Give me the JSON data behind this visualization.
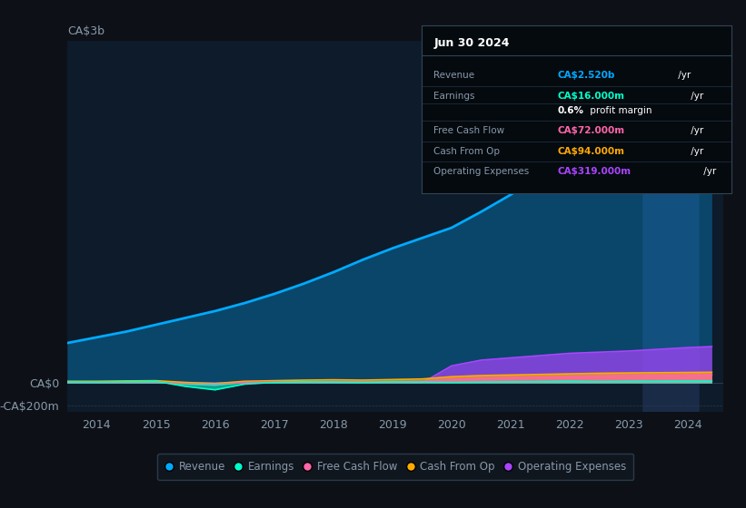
{
  "bg_color": "#0d1117",
  "plot_bg_color": "#0d1b2a",
  "text_color": "#8899aa",
  "years": [
    2013.5,
    2014,
    2014.5,
    2015,
    2015.5,
    2016,
    2016.5,
    2017,
    2017.5,
    2018,
    2018.5,
    2019,
    2019.5,
    2020,
    2020.5,
    2021,
    2021.5,
    2022,
    2022.5,
    2023,
    2023.5,
    2024,
    2024.4
  ],
  "revenue": [
    350,
    400,
    450,
    510,
    570,
    630,
    700,
    780,
    870,
    970,
    1080,
    1180,
    1270,
    1360,
    1500,
    1650,
    1820,
    2000,
    2180,
    2350,
    2450,
    2500,
    2520
  ],
  "earnings": [
    10,
    8,
    12,
    15,
    -30,
    -60,
    -10,
    5,
    10,
    8,
    5,
    10,
    8,
    5,
    8,
    10,
    12,
    15,
    12,
    14,
    15,
    16,
    16
  ],
  "free_cash_flow": [
    5,
    5,
    8,
    8,
    -10,
    -20,
    5,
    8,
    10,
    12,
    10,
    12,
    15,
    30,
    40,
    45,
    50,
    55,
    60,
    65,
    68,
    70,
    72
  ],
  "cash_from_op": [
    15,
    15,
    18,
    20,
    5,
    -5,
    15,
    20,
    25,
    28,
    25,
    30,
    35,
    55,
    65,
    70,
    75,
    80,
    85,
    88,
    90,
    92,
    94
  ],
  "operating_expenses": [
    0,
    0,
    0,
    0,
    0,
    0,
    0,
    0,
    0,
    0,
    0,
    0,
    0,
    150,
    200,
    220,
    240,
    260,
    270,
    280,
    295,
    310,
    319
  ],
  "xlim": [
    2013.5,
    2024.6
  ],
  "ylim": [
    -250,
    3000
  ],
  "xtick_labels": [
    "2014",
    "2015",
    "2016",
    "2017",
    "2018",
    "2019",
    "2020",
    "2021",
    "2022",
    "2023",
    "2024"
  ],
  "xtick_positions": [
    2014,
    2015,
    2016,
    2017,
    2018,
    2019,
    2020,
    2021,
    2022,
    2023,
    2024
  ],
  "highlight_x": 2023.7,
  "revenue_color": "#00aaff",
  "earnings_color": "#00ffcc",
  "free_cash_flow_color": "#ff66aa",
  "cash_from_op_color": "#ffaa00",
  "operating_expenses_color": "#aa44ff",
  "legend_items": [
    "Revenue",
    "Earnings",
    "Free Cash Flow",
    "Cash From Op",
    "Operating Expenses"
  ],
  "info_box": {
    "title": "Jun 30 2024",
    "rows": [
      {
        "label": "Revenue",
        "value": "CA$2.520b",
        "color": "#00aaff",
        "bold_part": null
      },
      {
        "label": "Earnings",
        "value": "CA$16.000m",
        "color": "#00ffcc",
        "bold_part": null
      },
      {
        "label": "",
        "value": "0.6% profit margin",
        "color": "#ffffff",
        "bold_part": "0.6%"
      },
      {
        "label": "Free Cash Flow",
        "value": "CA$72.000m",
        "color": "#ff66aa",
        "bold_part": null
      },
      {
        "label": "Cash From Op",
        "value": "CA$94.000m",
        "color": "#ffaa00",
        "bold_part": null
      },
      {
        "label": "Operating Expenses",
        "value": "CA$319.000m",
        "color": "#aa44ff",
        "bold_part": null
      }
    ]
  }
}
